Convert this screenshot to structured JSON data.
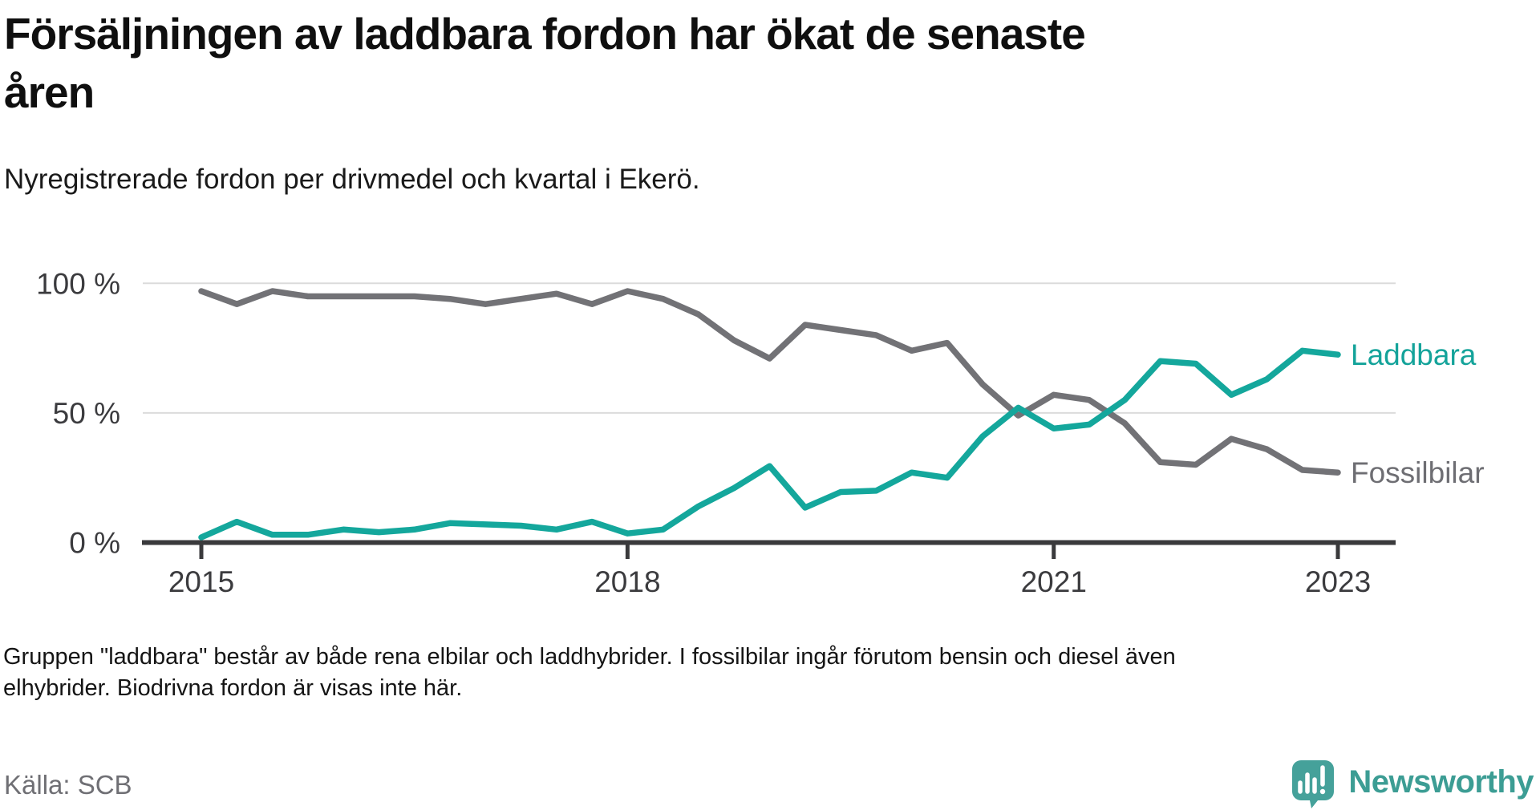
{
  "header": {
    "title": "Försäljningen av laddbara fordon har ökat de senaste åren",
    "title_lines": [
      "Försäljningen av laddbara fordon har ökat de senaste",
      "åren"
    ],
    "subtitle": "Nyregistrerade fordon per drivmedel och kvartal i Ekerö."
  },
  "footer": {
    "note": "Gruppen \"laddbara\" består av både rena elbilar och laddhybrider. I fossilbilar ingår förutom bensin och diesel även elhybrider. Biodrivna fordon är visas inte här.",
    "note_lines": [
      "Gruppen \"laddbara\" består av både rena elbilar och laddhybrider. I fossilbilar ingår förutom bensin och diesel även",
      "elhybrider. Biodrivna fordon är visas inte här."
    ],
    "source": "Källa: SCB",
    "brand": "Newsworthy"
  },
  "colors": {
    "laddbara": "#14A79C",
    "fossilbilar": "#727276",
    "axis": "#3A3A3C",
    "grid": "#DBDBDB",
    "tick_label": "#3B3B3E",
    "laddbara_label": "#14A39A",
    "fossilbilar_label": "#6E6E73",
    "logo": "#45A19A"
  },
  "chart_data": {
    "type": "line",
    "unit": "percent",
    "frequency": "quarterly",
    "quarters": [
      "2015 Q1",
      "2015 Q2",
      "2015 Q3",
      "2015 Q4",
      "2016 Q1",
      "2016 Q2",
      "2016 Q3",
      "2016 Q4",
      "2017 Q1",
      "2017 Q2",
      "2017 Q3",
      "2017 Q4",
      "2018 Q1",
      "2018 Q2",
      "2018 Q3",
      "2018 Q4",
      "2019 Q1",
      "2019 Q2",
      "2019 Q3",
      "2019 Q4",
      "2020 Q1",
      "2020 Q2",
      "2020 Q3",
      "2020 Q4",
      "2021 Q1",
      "2021 Q2",
      "2021 Q3",
      "2021 Q4",
      "2022 Q1",
      "2022 Q2",
      "2022 Q3",
      "2022 Q4",
      "2023 Q1"
    ],
    "series": [
      {
        "name": "Laddbara",
        "values": [
          2,
          8,
          3,
          3,
          5,
          4,
          5,
          7.5,
          7,
          6.5,
          5,
          8,
          3.5,
          5,
          14,
          21,
          29.5,
          13.5,
          19.5,
          20,
          27,
          25,
          41,
          52,
          44,
          45.5,
          55,
          70,
          69,
          57,
          63,
          74,
          72.5
        ]
      },
      {
        "name": "Fossilbilar",
        "values": [
          97,
          92,
          97,
          95,
          95,
          95,
          95,
          94,
          92,
          94,
          96,
          92,
          97,
          94,
          88,
          78,
          71,
          84,
          82,
          80,
          74,
          77,
          61,
          49,
          57,
          55,
          46,
          31,
          30,
          40,
          36,
          28,
          27
        ]
      }
    ],
    "ylim": [
      0,
      100
    ],
    "y_ticks": [
      0,
      50,
      100
    ],
    "y_tick_labels": [
      "0 %",
      "50 %",
      "100 %"
    ],
    "x_tick_indices": [
      0,
      12,
      24,
      32
    ],
    "x_tick_labels": [
      "2015",
      "2018",
      "2021",
      "2023"
    ],
    "grid": "horizontal gridlines at 50 % and 100 %, legend as direct line labels right of chart"
  }
}
